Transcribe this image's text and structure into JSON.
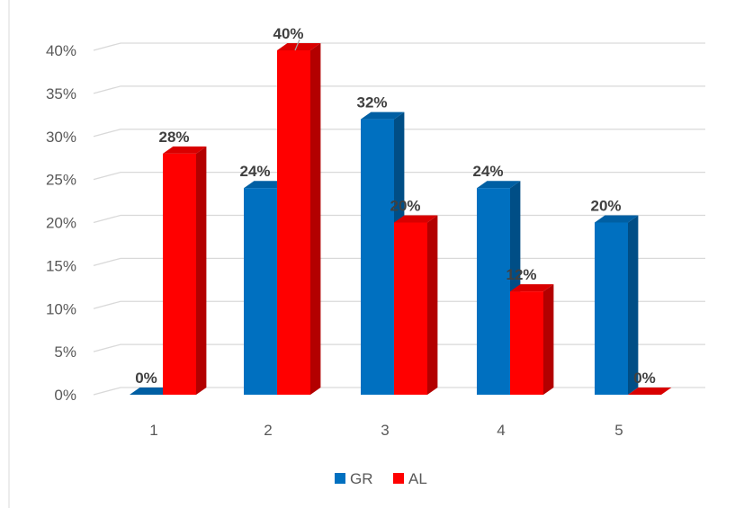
{
  "chart_data": {
    "type": "bar",
    "style": "3d-clustered-column",
    "categories": [
      "1",
      "2",
      "3",
      "4",
      "5"
    ],
    "series": [
      {
        "name": "GR",
        "color": "#0070C0",
        "values": [
          0,
          24,
          32,
          24,
          20
        ],
        "labels": [
          "0%",
          "24%",
          "32%",
          "24%",
          "20%"
        ]
      },
      {
        "name": "AL",
        "color": "#FF0000",
        "values": [
          28,
          40,
          20,
          12,
          0
        ],
        "labels": [
          "28%",
          "40%",
          "20%",
          "12%",
          "0%"
        ]
      }
    ],
    "y_ticks": [
      "0%",
      "5%",
      "10%",
      "15%",
      "20%",
      "25%",
      "30%",
      "35%",
      "40%"
    ],
    "ylim": [
      0,
      40
    ],
    "y_unit": "%",
    "grid": true,
    "legend": "bottom",
    "title": "",
    "xlabel": "",
    "ylabel": ""
  }
}
